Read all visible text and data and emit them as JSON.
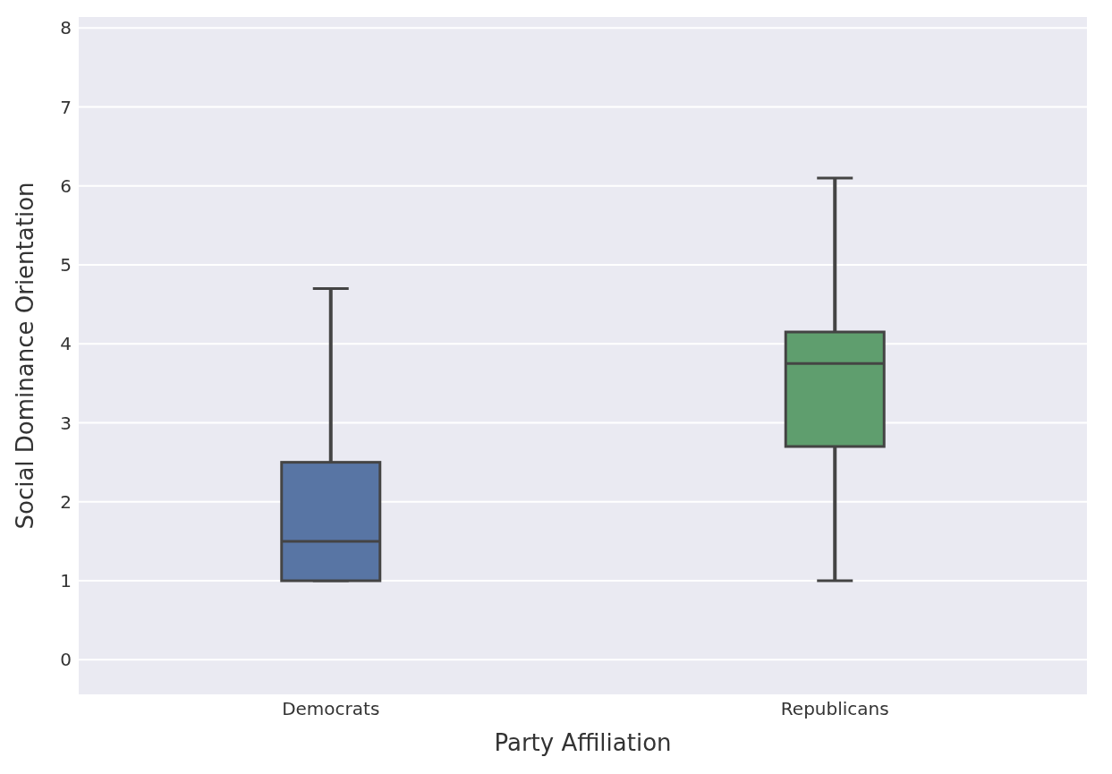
{
  "chart_data": {
    "type": "box",
    "xlabel": "Party Affiliation",
    "ylabel": "Social Dominance Orientation",
    "categories": [
      "Democrats",
      "Republicans"
    ],
    "colors": [
      "#5875a4",
      "#5f9e6e"
    ],
    "boxes": [
      {
        "low": 1.0,
        "q1": 1.0,
        "median": 1.5,
        "q3": 2.5,
        "high": 4.7
      },
      {
        "low": 1.0,
        "q1": 2.7,
        "median": 3.75,
        "q3": 4.15,
        "high": 6.1
      }
    ],
    "ylim": [
      -0.45,
      8.15
    ],
    "yticks": [
      0,
      1,
      2,
      3,
      4,
      5,
      6,
      7,
      8
    ],
    "grid": "y"
  }
}
